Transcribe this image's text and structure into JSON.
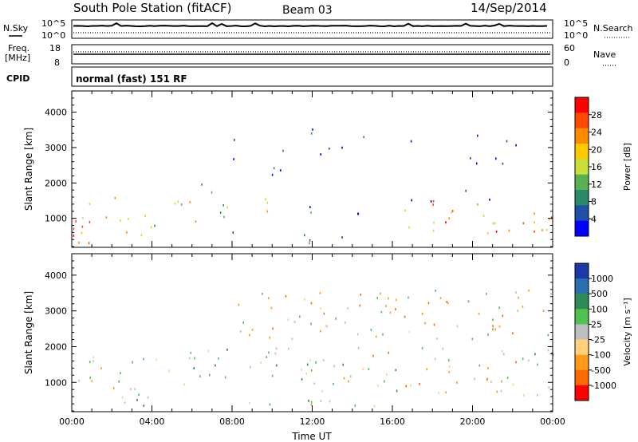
{
  "header": {
    "station": "South Pole Station (fitACF)",
    "beam": "Beam 03",
    "date": "14/Sep/2014"
  },
  "summary": {
    "nsky_label": "N.Sky",
    "nsky_ticks": [
      "10^5",
      "10^0"
    ],
    "nsearch_label": "N.Search",
    "nsearch_ticks": [
      "10^5",
      "10^0"
    ],
    "freq_label": "Freq.",
    "freq_unit": "[MHz]",
    "freq_ticks": [
      "18",
      "8"
    ],
    "nave_label": "Nave",
    "nave_ticks": [
      "60",
      "0"
    ],
    "cpid_label": "CPID",
    "cpid_value": "normal (fast) 151 RF"
  },
  "chart_data": [
    {
      "type": "heatmap",
      "panel": "power",
      "ylabel": "Slant Range [km]",
      "xlabel": "Time UT",
      "x_ticks": [
        "00:00",
        "04:00",
        "08:00",
        "12:00",
        "16:00",
        "20:00",
        "00:00"
      ],
      "y_ticks": [
        1000,
        2000,
        3000,
        4000
      ],
      "ylim": [
        180,
        4600
      ],
      "xlim_hours": [
        0,
        24
      ],
      "colorbar_label": "Power [dB]",
      "colorbar_ticks": [
        "28",
        "24",
        "20",
        "16",
        "12",
        "8",
        "4"
      ],
      "colorbar_colors": [
        "#ff0000",
        "#ff4a00",
        "#ff8c00",
        "#ffc800",
        "#c9e03a",
        "#59b04e",
        "#2a8a6c",
        "#1f4fa6",
        "#0000ff"
      ],
      "scatter_regions": [
        {
          "t": [
            0.0,
            2.2
          ],
          "r": [
            600,
            1800
          ],
          "level": 0.72
        },
        {
          "t": [
            0.0,
            2.0
          ],
          "r": [
            250,
            700
          ],
          "level": 0.9
        },
        {
          "t": [
            2.2,
            4.2
          ],
          "r": [
            250,
            1300
          ],
          "level": 0.55
        },
        {
          "t": [
            4.8,
            7.8
          ],
          "r": [
            900,
            2000
          ],
          "level": 0.5
        },
        {
          "t": [
            7.8,
            8.8
          ],
          "r": [
            200,
            1200
          ],
          "level": 0.25
        },
        {
          "t": [
            9.5,
            10.5
          ],
          "r": [
            900,
            1700
          ],
          "level": 0.55
        },
        {
          "t": [
            8.5,
            16.3
          ],
          "r": [
            300,
            1400
          ],
          "level": 0.18
        },
        {
          "t": [
            16.6,
            24.0
          ],
          "r": [
            600,
            1600
          ],
          "level": 0.7
        },
        {
          "t": [
            16.8,
            24.0
          ],
          "r": [
            1500,
            2200
          ],
          "level": 0.15
        },
        {
          "t": [
            8.0,
            24.0
          ],
          "r": [
            2200,
            3600
          ],
          "level": 0.1
        }
      ]
    },
    {
      "type": "heatmap",
      "panel": "velocity",
      "ylabel": "Slant Range [km]",
      "xlabel": "Time UT",
      "x_ticks": [
        "00:00",
        "04:00",
        "08:00",
        "12:00",
        "16:00",
        "20:00",
        "00:00"
      ],
      "y_ticks": [
        1000,
        2000,
        3000,
        4000
      ],
      "ylim": [
        180,
        4600
      ],
      "xlim_hours": [
        0,
        24
      ],
      "colorbar_label": "Velocity [m s⁻¹]",
      "colorbar_ticks": [
        "1000",
        "500",
        "100",
        "25",
        "-25",
        "-100",
        "-500",
        "-1000"
      ],
      "colorbar_colors": [
        "#1a3aa8",
        "#2a6fb0",
        "#2e8b57",
        "#4fc34f",
        "#bfbfbf",
        "#ffd27a",
        "#ff9a1a",
        "#ff6a00",
        "#ff0000"
      ],
      "scatter_regions": [
        {
          "t": [
            0.0,
            4.2
          ],
          "r": [
            300,
            1800
          ],
          "level": 0.5
        },
        {
          "t": [
            4.8,
            7.8
          ],
          "r": [
            700,
            2000
          ],
          "level": 0.6
        },
        {
          "t": [
            8.5,
            16.3
          ],
          "r": [
            300,
            2000
          ],
          "level": 0.45
        },
        {
          "t": [
            16.6,
            24.0
          ],
          "r": [
            600,
            1600
          ],
          "level": 0.35
        },
        {
          "t": [
            16.8,
            24.0
          ],
          "r": [
            1500,
            2000
          ],
          "level": 0.55
        },
        {
          "t": [
            8.0,
            24.0
          ],
          "r": [
            2200,
            3600
          ],
          "level": 0.4
        }
      ]
    }
  ]
}
